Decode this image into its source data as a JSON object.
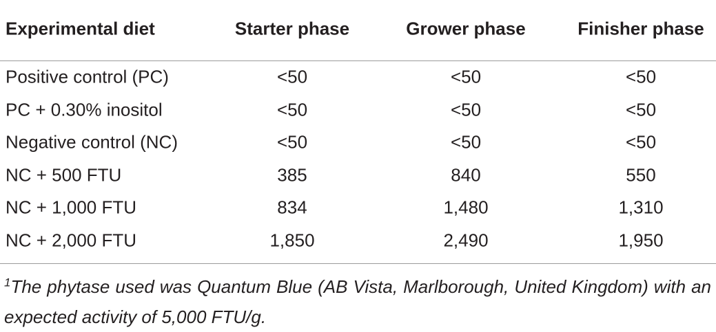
{
  "table": {
    "header": [
      "Experimental diet",
      "Starter phase",
      "Grower phase",
      "Finisher phase"
    ],
    "rows": [
      [
        "Positive control (PC)",
        "<50",
        "<50",
        "<50"
      ],
      [
        "PC + 0.30% inositol",
        "<50",
        "<50",
        "<50"
      ],
      [
        "Negative control (NC)",
        "<50",
        "<50",
        "<50"
      ],
      [
        "NC + 500 FTU",
        "385",
        "840",
        "550"
      ],
      [
        "NC + 1,000 FTU",
        "834",
        "1,480",
        "1,310"
      ],
      [
        "NC + 2,000 FTU",
        "1,850",
        "2,490",
        "1,950"
      ]
    ]
  },
  "footnote": {
    "marker": "1",
    "text": "The phytase used was Quantum Blue (AB Vista, Marlborough, United Kingdom) with an expected activity of 5,000 FTU/g."
  }
}
